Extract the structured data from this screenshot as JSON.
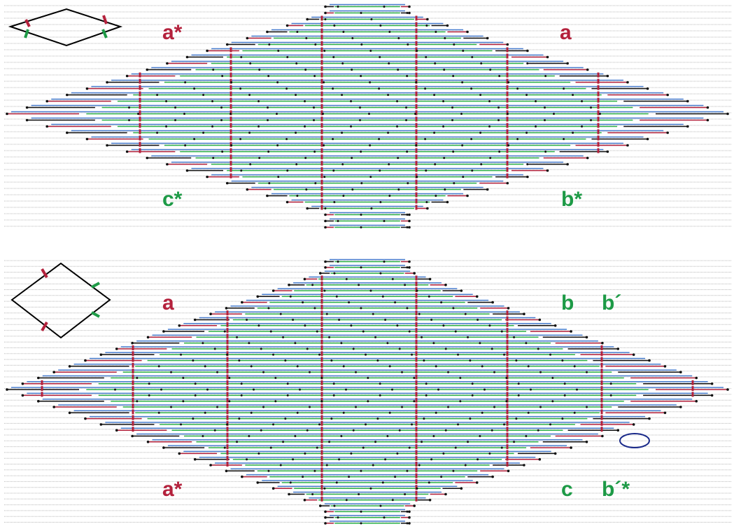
{
  "top_panel": {
    "labels": [
      "a*",
      "a",
      "c*",
      "b*"
    ]
  },
  "bottom_panel": {
    "labels": [
      "a",
      "b",
      "b´",
      "a*",
      "c",
      "b´*"
    ]
  }
}
